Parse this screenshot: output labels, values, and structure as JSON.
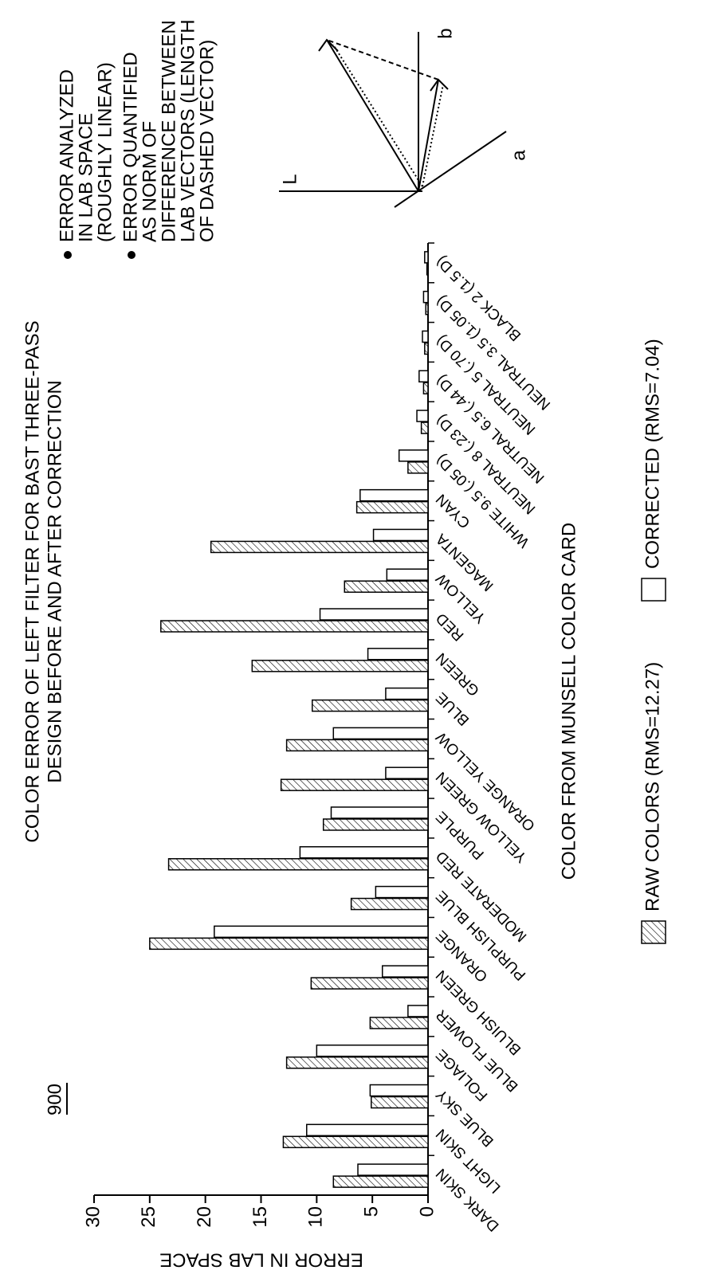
{
  "figure_number": "900",
  "notes": [
    [
      "ERROR ANALYZED",
      "IN LAB SPACE",
      "(ROUGHLY LINEAR)"
    ],
    [
      "ERROR QUANTIFIED",
      "AS NORM OF",
      "DIFFERENCE BETWEEN",
      "LAB VECTORS (LENGTH",
      "OF DASHED VECTOR)"
    ]
  ],
  "diagram_labels": {
    "l": "L",
    "a": "a",
    "b": "b"
  },
  "chart_data": {
    "type": "bar",
    "title_lines": [
      "COLOR ERROR OF LEFT FILTER FOR BAST THREE-PASS",
      "DESIGN BEFORE AND AFTER CORRECTION"
    ],
    "x_label": "COLOR FROM MUNSELL COLOR CARD",
    "y_label": "ERROR IN LAB SPACE",
    "categories": [
      "DARK SKIN",
      "LIGHT SKIN",
      "BLUE SKY",
      "FOLIAGE",
      "BLUE FLOWER",
      "BLUISH GREEN",
      "ORANGE",
      "PURPLISH BLUE",
      "MODERATE RED",
      "PURPLE",
      "YELLOW GREEN",
      "ORANGE YELLOW",
      "BLUE",
      "GREEN",
      "RED",
      "YELLOW",
      "MAGENTA",
      "CYAN",
      "WHITE 9.5 (.05 D)",
      "NEUTRAL 8 (.23 D)",
      "NEUTRAL 6.5 (.44 D)",
      "NEUTRAL 5 (.70 D)",
      "NEUTRAL 3.5 (1.05 D)",
      "BLACK 2 (1.5 D)"
    ],
    "series": [
      {
        "name": "RAW COLORS (RMS=12.27)",
        "color": "#000000",
        "hatch": true,
        "values": [
          8.5,
          13,
          5.1,
          12.7,
          5.2,
          10.5,
          25,
          6.9,
          23.3,
          9.4,
          13.2,
          12.7,
          10.4,
          15.8,
          24,
          7.5,
          19.5,
          6.4,
          1.8,
          0.6,
          0.4,
          0.3,
          0.2,
          0.1
        ]
      },
      {
        "name": "CORRECTED (RMS=7.04)",
        "color": "#000000",
        "hatch": false,
        "values": [
          6.3,
          10.9,
          5.2,
          10,
          1.8,
          4.1,
          19.2,
          4.7,
          11.5,
          8.7,
          3.8,
          8.5,
          3.8,
          5.4,
          9.7,
          3.7,
          4.9,
          6.1,
          2.6,
          1.0,
          0.8,
          0.5,
          0.4,
          0.3
        ]
      }
    ],
    "ylim": [
      0,
      30
    ],
    "yticks": [
      0,
      5,
      10,
      15,
      20,
      25,
      30
    ],
    "grid": false
  }
}
